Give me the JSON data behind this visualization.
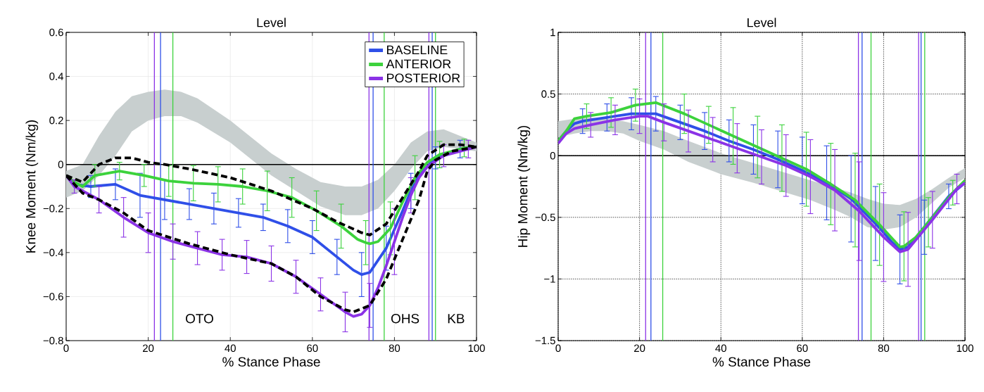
{
  "chart_data": [
    {
      "type": "line",
      "title": "Level",
      "xlabel": "% Stance Phase",
      "ylabel": "Knee Moment (Nm/kg)",
      "xlim": [
        0,
        100
      ],
      "ylim": [
        -0.8,
        0.6
      ],
      "xticks": [
        0,
        20,
        40,
        60,
        80,
        100
      ],
      "yticks": [
        {
          "value": -0.8,
          "label": "−0.8"
        },
        {
          "value": -0.6,
          "label": "−0.6"
        },
        {
          "value": -0.4,
          "label": "−0.4"
        },
        {
          "value": -0.2,
          "label": "−0.2"
        },
        0,
        0.2,
        0.4,
        0.6
      ],
      "grid": true,
      "legend": "top right",
      "annotations": [
        {
          "text": "OTO",
          "x": 32.5,
          "y": -0.7
        },
        {
          "text": "OHS",
          "x": 82.6,
          "y": -0.7
        },
        {
          "text": "KB",
          "x": 95,
          "y": -0.7
        }
      ],
      "ref_lines": [
        {
          "axis": "y",
          "value": 0,
          "color": "#000000"
        },
        {
          "axis": "x",
          "value": 21.5,
          "color": "#8b33e6"
        },
        {
          "axis": "x",
          "value": 23,
          "color": "#2f4fe8"
        },
        {
          "axis": "x",
          "value": 26,
          "color": "#3cd23c"
        },
        {
          "axis": "x",
          "value": 73.8,
          "color": "#8b33e6"
        },
        {
          "axis": "x",
          "value": 74.8,
          "color": "#2f4fe8"
        },
        {
          "axis": "x",
          "value": 77.5,
          "color": "#3cd23c"
        },
        {
          "axis": "x",
          "value": 88.4,
          "color": "#8b33e6"
        },
        {
          "axis": "x",
          "value": 89.2,
          "color": "#2f4fe8"
        },
        {
          "axis": "x",
          "value": 90,
          "color": "#3cd23c"
        }
      ],
      "series": [
        {
          "color": "#c8cfcf",
          "x": [
            0,
            4,
            8,
            12,
            16,
            20,
            24,
            28,
            32,
            40,
            50,
            56,
            62,
            68,
            72,
            76,
            80,
            84,
            88,
            92,
            96,
            100
          ],
          "values": [
            null,
            null,
            null,
            null,
            null,
            null,
            null,
            null,
            null,
            null,
            null,
            null,
            null,
            null,
            null,
            null,
            null,
            null,
            null,
            null,
            null,
            null
          ],
          "upper": [
            -0.03,
            0.0,
            0.13,
            0.24,
            0.31,
            0.33,
            0.34,
            0.33,
            0.3,
            0.2,
            0.05,
            -0.02,
            -0.08,
            -0.1,
            -0.1,
            -0.07,
            0.0,
            0.1,
            0.15,
            0.16,
            0.13,
            0.1
          ],
          "lower": [
            -0.15,
            -0.12,
            -0.05,
            0.04,
            0.15,
            0.2,
            0.22,
            0.22,
            0.19,
            0.1,
            -0.05,
            -0.12,
            -0.19,
            -0.23,
            -0.23,
            -0.2,
            -0.12,
            -0.02,
            0.06,
            0.08,
            0.07,
            0.06
          ]
        },
        {
          "color": "#000000",
          "line_style": "dashed",
          "x": [
            0,
            4,
            8,
            12,
            16,
            20,
            24,
            30,
            40,
            50,
            60,
            66,
            72,
            74,
            78,
            82,
            86,
            88,
            92,
            96,
            100
          ],
          "values": [
            -0.05,
            -0.08,
            0.0,
            0.03,
            0.03,
            0.01,
            0.0,
            -0.02,
            -0.06,
            -0.12,
            -0.2,
            -0.26,
            -0.31,
            -0.32,
            -0.27,
            -0.15,
            -0.03,
            0.04,
            0.09,
            0.09,
            0.08
          ]
        },
        {
          "color": "#000000",
          "line_style": "dashed",
          "x": [
            0,
            4,
            8,
            14,
            20,
            30,
            40,
            50,
            56,
            62,
            68,
            70,
            74,
            78,
            82,
            86,
            88,
            90,
            94,
            100
          ],
          "values": [
            -0.05,
            -0.13,
            -0.16,
            -0.22,
            -0.3,
            -0.36,
            -0.41,
            -0.45,
            -0.51,
            -0.6,
            -0.66,
            -0.67,
            -0.64,
            -0.52,
            -0.34,
            -0.16,
            -0.03,
            0.02,
            0.06,
            0.08
          ]
        },
        {
          "name": "BASELINE",
          "color": "#2f4fe8",
          "x": [
            0,
            2,
            6,
            12,
            18,
            24,
            30,
            36,
            42,
            48,
            54,
            60,
            66,
            70,
            72,
            74,
            78,
            82,
            84,
            86,
            90,
            96,
            100
          ],
          "values": [
            -0.05,
            -0.09,
            -0.1,
            -0.09,
            -0.14,
            -0.16,
            -0.18,
            -0.2,
            -0.22,
            -0.24,
            -0.28,
            -0.33,
            -0.42,
            -0.48,
            -0.5,
            -0.49,
            -0.38,
            -0.21,
            -0.12,
            -0.05,
            0.03,
            0.07,
            0.08
          ],
          "errors": [
            null,
            null,
            0.05,
            0.07,
            0.1,
            0.09,
            0.07,
            0.07,
            0.065,
            0.06,
            0.075,
            0.075,
            0.08,
            null,
            0.1,
            null,
            0.1,
            null,
            0.08,
            null,
            0.05,
            0.04,
            null
          ]
        },
        {
          "name": "ANTERIOR",
          "color": "#3cd23c",
          "x": [
            0,
            2,
            4,
            7,
            13,
            19,
            25,
            31,
            37,
            43,
            49,
            55,
            61,
            67,
            71,
            73,
            74,
            76,
            79,
            82,
            85,
            88,
            91,
            97,
            100
          ],
          "values": [
            -0.05,
            -0.08,
            -0.1,
            -0.05,
            -0.03,
            -0.05,
            -0.075,
            -0.085,
            -0.09,
            -0.1,
            -0.12,
            -0.15,
            -0.21,
            -0.28,
            -0.34,
            -0.355,
            -0.36,
            -0.35,
            -0.29,
            -0.17,
            -0.06,
            0.01,
            0.045,
            0.075,
            0.08
          ],
          "errors": [
            null,
            null,
            null,
            0.05,
            0.04,
            0.05,
            0.07,
            0.08,
            0.08,
            0.08,
            0.09,
            0.09,
            0.09,
            0.1,
            null,
            0.1,
            null,
            null,
            0.12,
            null,
            0.1,
            null,
            0.06,
            0.04,
            null
          ]
        },
        {
          "name": "POSTERIOR",
          "color": "#8b33e6",
          "x": [
            0,
            2,
            4,
            8,
            14,
            20,
            26,
            32,
            38,
            44,
            50,
            56,
            62,
            68,
            70,
            72,
            74,
            76,
            78,
            80,
            82,
            84,
            86,
            88,
            92,
            98,
            100
          ],
          "values": [
            -0.05,
            -0.1,
            -0.12,
            -0.16,
            -0.24,
            -0.31,
            -0.35,
            -0.38,
            -0.41,
            -0.42,
            -0.45,
            -0.51,
            -0.59,
            -0.67,
            -0.69,
            -0.68,
            -0.64,
            -0.56,
            -0.46,
            -0.35,
            -0.24,
            -0.14,
            -0.06,
            -0.01,
            0.04,
            0.07,
            0.08
          ],
          "errors": [
            null,
            0.03,
            null,
            0.06,
            0.09,
            0.09,
            0.08,
            0.075,
            0.07,
            0.075,
            0.08,
            0.075,
            0.075,
            0.09,
            null,
            null,
            0.1,
            null,
            null,
            0.15,
            null,
            0.08,
            null,
            null,
            0.05,
            0.04,
            null
          ]
        }
      ]
    },
    {
      "type": "line",
      "title": "Level",
      "xlabel": "% Stance Phase",
      "ylabel": "Hip Moment (Nm/kg)",
      "xlim": [
        0,
        100
      ],
      "ylim": [
        -1.5,
        1
      ],
      "xticks": [
        0,
        20,
        40,
        60,
        80,
        100
      ],
      "yticks": [
        {
          "value": -1.5,
          "label": "−1.5"
        },
        {
          "value": -1,
          "label": "−1"
        },
        {
          "value": -0.5,
          "label": "−0.5"
        },
        0,
        0.5,
        1
      ],
      "grid": true,
      "ref_lines": [
        {
          "axis": "y",
          "value": 0,
          "color": "#000000"
        },
        {
          "axis": "x",
          "value": 21.5,
          "color": "#8b33e6"
        },
        {
          "axis": "x",
          "value": 22.8,
          "color": "#2f4fe8"
        },
        {
          "axis": "x",
          "value": 25.7,
          "color": "#3cd23c"
        },
        {
          "axis": "x",
          "value": 73.8,
          "color": "#8b33e6"
        },
        {
          "axis": "x",
          "value": 74.7,
          "color": "#2f4fe8"
        },
        {
          "axis": "x",
          "value": 76.9,
          "color": "#3cd23c"
        },
        {
          "axis": "x",
          "value": 88.6,
          "color": "#8b33e6"
        },
        {
          "axis": "x",
          "value": 89.2,
          "color": "#2f4fe8"
        },
        {
          "axis": "x",
          "value": 90.1,
          "color": "#3cd23c"
        }
      ],
      "series": [
        {
          "color": "#c8cfcf",
          "x": [
            0,
            4,
            8,
            12,
            16,
            20,
            26,
            32,
            40,
            48,
            56,
            62,
            68,
            72,
            76,
            80,
            84,
            88,
            92,
            96,
            100
          ],
          "values": [
            null,
            null,
            null,
            null,
            null,
            null,
            null,
            null,
            null,
            null,
            null,
            null,
            null,
            null,
            null,
            null,
            null,
            null,
            null,
            null,
            null
          ],
          "upper": [
            0.28,
            0.3,
            0.31,
            0.3,
            0.28,
            0.25,
            0.2,
            0.12,
            0.02,
            -0.06,
            -0.14,
            -0.2,
            -0.26,
            -0.3,
            -0.35,
            -0.39,
            -0.4,
            -0.35,
            -0.27,
            -0.18,
            -0.1
          ],
          "lower": [
            0.15,
            0.18,
            0.2,
            0.2,
            0.18,
            0.12,
            0.05,
            -0.05,
            -0.15,
            -0.22,
            -0.3,
            -0.36,
            -0.44,
            -0.5,
            -0.58,
            -0.6,
            -0.58,
            -0.5,
            -0.38,
            -0.26,
            -0.18
          ]
        },
        {
          "color": "#2f4fe8",
          "x": [
            0,
            2,
            4,
            6,
            12,
            18,
            24,
            30,
            36,
            42,
            48,
            54,
            60,
            66,
            72,
            78,
            82,
            84,
            86,
            90,
            96,
            100
          ],
          "values": [
            0.12,
            0.2,
            0.26,
            0.28,
            0.31,
            0.34,
            0.34,
            0.27,
            0.2,
            0.12,
            0.05,
            -0.03,
            -0.12,
            -0.22,
            -0.35,
            -0.55,
            -0.7,
            -0.76,
            -0.74,
            -0.58,
            -0.33,
            -0.22
          ],
          "errors": [
            null,
            null,
            null,
            0.1,
            0.11,
            0.13,
            0.14,
            0.14,
            0.15,
            0.17,
            0.2,
            0.23,
            0.27,
            0.3,
            0.35,
            0.3,
            null,
            0.28,
            null,
            0.22,
            0.1,
            null
          ]
        },
        {
          "color": "#3cd23c",
          "x": [
            0,
            2,
            4,
            7,
            13,
            19,
            24,
            31,
            37,
            43,
            49,
            55,
            61,
            67,
            73,
            79,
            84,
            85,
            88,
            91,
            97,
            100
          ],
          "values": [
            0.12,
            0.2,
            0.3,
            0.32,
            0.35,
            0.41,
            0.43,
            0.34,
            0.25,
            0.16,
            0.07,
            -0.02,
            -0.11,
            -0.23,
            -0.36,
            -0.56,
            -0.74,
            -0.735,
            -0.66,
            -0.54,
            -0.3,
            -0.2
          ],
          "errors": [
            null,
            null,
            null,
            0.1,
            0.12,
            0.13,
            null,
            0.16,
            0.15,
            0.23,
            0.25,
            0.27,
            0.3,
            0.33,
            0.38,
            0.33,
            null,
            0.28,
            null,
            0.2,
            0.1,
            null
          ]
        },
        {
          "color": "#8b33e6",
          "x": [
            0,
            2,
            4,
            8,
            14,
            20,
            22,
            26,
            32,
            38,
            44,
            50,
            56,
            62,
            68,
            74,
            80,
            84,
            86,
            92,
            98,
            100
          ],
          "values": [
            0.1,
            0.18,
            0.22,
            0.25,
            0.29,
            0.32,
            0.32,
            0.27,
            0.2,
            0.13,
            0.06,
            -0.01,
            -0.08,
            -0.17,
            -0.28,
            -0.45,
            -0.66,
            -0.78,
            -0.76,
            -0.52,
            -0.27,
            -0.22
          ],
          "errors": [
            null,
            null,
            null,
            0.1,
            0.12,
            0.14,
            null,
            0.15,
            0.17,
            0.18,
            0.2,
            0.22,
            0.25,
            0.3,
            0.33,
            0.4,
            0.36,
            null,
            0.3,
            0.23,
            0.12,
            null
          ]
        }
      ]
    }
  ]
}
